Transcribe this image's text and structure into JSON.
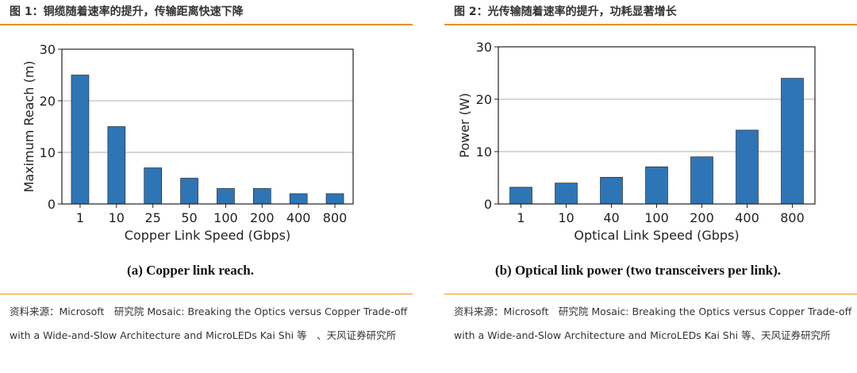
{
  "figures": [
    {
      "title": "图 1：铜缆随着速率的提升，传输距离快速下降",
      "caption": "(a) Copper link reach.",
      "source": "资料来源：Microsoft　研究院 Mosaic: Breaking the Optics versus Copper Trade-off with a Wide-and-Slow Architecture and MicroLEDs Kai Shi 等　、天风证券研究所"
    },
    {
      "title": "图 2：光传输随着速率的提升，功耗显著增长",
      "caption": "(b) Optical link power (two transceivers per link).",
      "source": "资料来源：Microsoft　研究院 Mosaic: Breaking the Optics versus Copper Trade-off with a Wide-and-Slow Architecture and MicroLEDs Kai Shi 等、天风证券研究所"
    }
  ],
  "chart_data": [
    {
      "type": "bar",
      "title": "",
      "xlabel": "Copper Link Speed (Gbps)",
      "ylabel": "Maximum Reach (m)",
      "categories": [
        "1",
        "10",
        "25",
        "50",
        "100",
        "200",
        "400",
        "800"
      ],
      "values": [
        25,
        15,
        7,
        5,
        3,
        3,
        2,
        2
      ],
      "ylim": [
        0,
        30
      ],
      "yticks": [
        0,
        10,
        20,
        30
      ],
      "grid": "horizontal",
      "bar_color": "#2e75b6"
    },
    {
      "type": "bar",
      "title": "",
      "xlabel": "Optical Link Speed (Gbps)",
      "ylabel": "Power (W)",
      "categories": [
        "1",
        "10",
        "40",
        "100",
        "200",
        "400",
        "800"
      ],
      "values": [
        3.2,
        4,
        5.1,
        7.1,
        9,
        14.1,
        24
      ],
      "ylim": [
        0,
        30
      ],
      "yticks": [
        0,
        10,
        20,
        30
      ],
      "grid": "horizontal",
      "bar_color": "#2e75b6"
    }
  ]
}
